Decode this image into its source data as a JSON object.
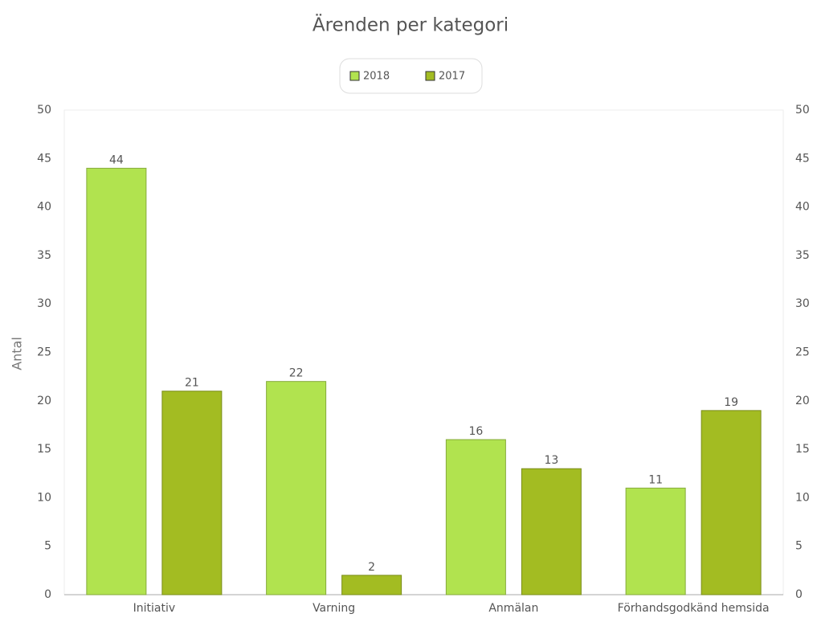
{
  "chart_data": {
    "type": "bar",
    "title": "Ärenden per kategori",
    "y_label": "Antal",
    "categories": [
      "Initiativ",
      "Varning",
      "Anmälan",
      "Förhandsgodkänd hemsida"
    ],
    "series": [
      {
        "name": "2018",
        "color": "#b1e34f",
        "values": [
          44,
          22,
          16,
          11
        ]
      },
      {
        "name": "2017",
        "color": "#a3bc22",
        "values": [
          21,
          2,
          13,
          19
        ]
      }
    ],
    "ylim": [
      0,
      50
    ],
    "yticks": [
      0,
      5,
      10,
      15,
      20,
      25,
      30,
      35,
      40,
      45,
      50
    ],
    "y2lim": [
      0,
      50
    ],
    "y2ticks": [
      0,
      5,
      10,
      15,
      20,
      25,
      30,
      35,
      40,
      45,
      50
    ],
    "grid": false,
    "legend": "top"
  }
}
